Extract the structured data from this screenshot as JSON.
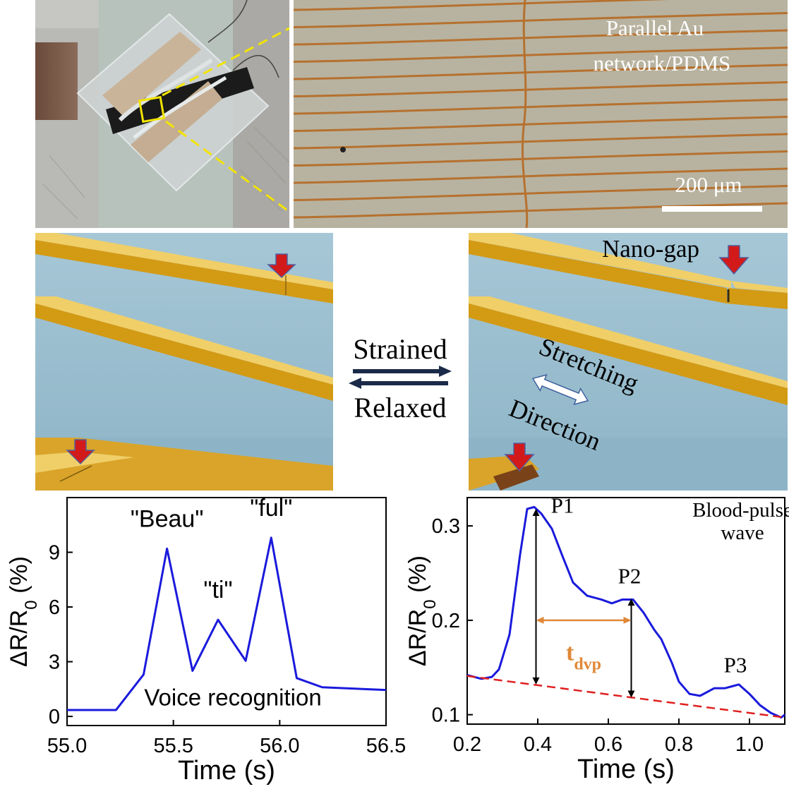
{
  "photo_panel": {
    "micrograph_label_line1": "Parallel Au",
    "micrograph_label_line2": "network/PDMS",
    "scale_bar_label": "200 μm"
  },
  "schematic_panel": {
    "nano_gap_label": "Nano-gap",
    "strained_label": "Strained",
    "relaxed_label": "Relaxed",
    "stretching_label": "Stretching",
    "direction_label": "Direction"
  },
  "chart_data": [
    {
      "type": "line",
      "title": "",
      "xlabel": "Time (s)",
      "ylabel": "ΔR/R0 (%)",
      "xlim": [
        55.0,
        56.5
      ],
      "ylim": [
        -0.5,
        12
      ],
      "x_ticks": [
        55.0,
        55.5,
        56.0,
        56.5
      ],
      "x_tick_labels": [
        "55.0",
        "55.5",
        "56.0",
        "56.5"
      ],
      "y_ticks": [
        0,
        3,
        6,
        9
      ],
      "y_tick_labels": [
        "0",
        "3",
        "6",
        "9"
      ],
      "color": "#1a1adc",
      "series": [
        {
          "x": [
            55.0,
            55.23,
            55.36,
            55.47,
            55.59,
            55.71,
            55.84,
            55.96,
            56.08,
            56.2,
            56.5
          ],
          "y": [
            0.35,
            0.35,
            2.3,
            9.2,
            2.5,
            5.3,
            3.05,
            9.8,
            2.1,
            1.6,
            1.45
          ]
        }
      ],
      "annotations": [
        {
          "text": "\"Beau\"",
          "x": 55.47,
          "y": 10.4
        },
        {
          "text": "\"ti\"",
          "x": 55.71,
          "y": 6.5
        },
        {
          "text": "\"ful\"",
          "x": 55.96,
          "y": 11.0
        },
        {
          "text": "Voice recognition",
          "x": 55.78,
          "y": 0.6
        }
      ]
    },
    {
      "type": "line",
      "title": "",
      "xlabel": "Time (s)",
      "ylabel": "ΔR/R0 (%)",
      "xlim": [
        0.2,
        1.1
      ],
      "ylim": [
        0.09,
        0.33
      ],
      "x_ticks": [
        0.2,
        0.4,
        0.6,
        0.8,
        1.0
      ],
      "x_tick_labels": [
        "0.2",
        "0.4",
        "0.6",
        "0.8",
        "1.0"
      ],
      "y_ticks": [
        0.1,
        0.2,
        0.3
      ],
      "y_tick_labels": [
        "0.1",
        "0.2",
        "0.3"
      ],
      "color": "#1a1adc",
      "baseline_color": "#e02020",
      "dvp_color": "#e08838",
      "series": [
        {
          "x": [
            0.2,
            0.24,
            0.27,
            0.29,
            0.32,
            0.35,
            0.37,
            0.39,
            0.41,
            0.44,
            0.47,
            0.5,
            0.54,
            0.58,
            0.61,
            0.64,
            0.67,
            0.7,
            0.73,
            0.75,
            0.78,
            0.8,
            0.83,
            0.86,
            0.9,
            0.93,
            0.95,
            0.97,
            1.0,
            1.03,
            1.06,
            1.09,
            1.1
          ],
          "y": [
            0.142,
            0.138,
            0.14,
            0.148,
            0.185,
            0.27,
            0.318,
            0.32,
            0.313,
            0.297,
            0.268,
            0.24,
            0.226,
            0.222,
            0.218,
            0.222,
            0.222,
            0.208,
            0.19,
            0.18,
            0.155,
            0.135,
            0.122,
            0.12,
            0.128,
            0.128,
            0.13,
            0.132,
            0.122,
            0.11,
            0.102,
            0.097,
            0.1
          ]
        }
      ],
      "baseline": {
        "x": [
          0.2,
          1.1
        ],
        "y": [
          0.141,
          0.097
        ]
      },
      "p1_arrow": {
        "x": 0.395,
        "y_top": 0.318,
        "y_bottom": 0.132
      },
      "p2_arrow": {
        "x": 0.665,
        "y_top": 0.223,
        "y_bottom": 0.118
      },
      "tdvp": {
        "x_start": 0.395,
        "x_end": 0.665,
        "y": 0.2
      },
      "annotations": [
        {
          "text": "P1",
          "x": 0.47,
          "y": 0.314
        },
        {
          "text": "P2",
          "x": 0.66,
          "y": 0.239
        },
        {
          "text": "P3",
          "x": 0.96,
          "y": 0.145
        },
        {
          "text": "Blood-pulse",
          "x": 0.98,
          "y": 0.31
        },
        {
          "text": "wave",
          "x": 0.98,
          "y": 0.286
        },
        {
          "text": "t",
          "x": 0.53,
          "y": 0.18
        },
        {
          "text": "dvp",
          "x": 0.53,
          "y": 0.18
        }
      ]
    }
  ]
}
